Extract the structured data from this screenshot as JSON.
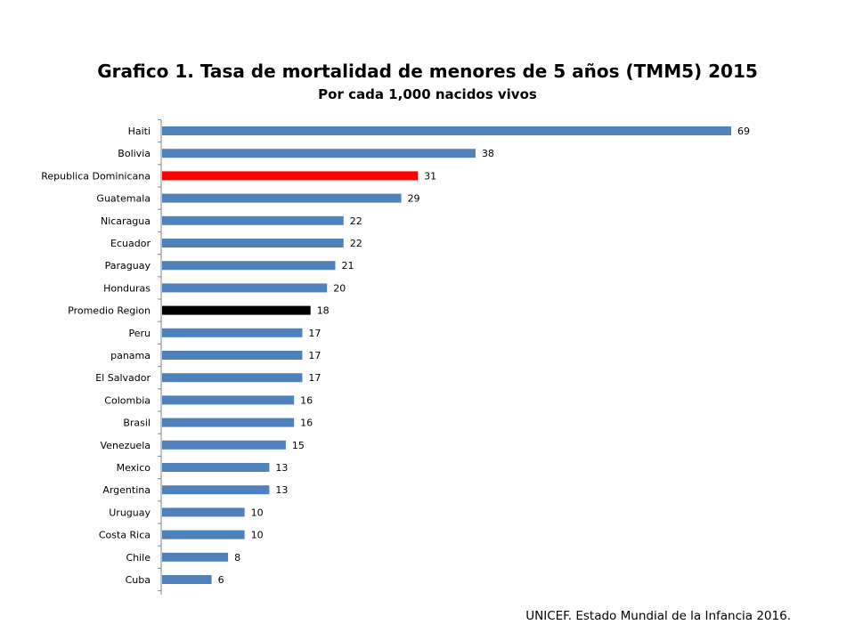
{
  "title": "Grafico 1. Tasa de mortalidad de menores de 5 años (TMM5) 2015",
  "subtitle": "Por cada 1,000 nacidos vivos",
  "source": "UNICEF. Estado Mundial de la Infancia 2016.",
  "colors": {
    "default": "#4f81bd",
    "highlight": "#ff0000",
    "region": "#000000"
  },
  "chart_data": {
    "type": "bar",
    "orientation": "horizontal",
    "title": "Grafico 1. Tasa de mortalidad de menores de 5 años (TMM5) 2015",
    "subtitle": "Por cada 1,000 nacidos vivos",
    "xlabel": "",
    "ylabel": "",
    "xlim": [
      0,
      70
    ],
    "grid": false,
    "categories": [
      "Haiti",
      "Bolivia",
      "Republica Dominicana",
      "Guatemala",
      "Nicaragua",
      "Ecuador",
      "Paraguay",
      "Honduras",
      "Promedio Region",
      "Peru",
      "panama",
      "El Salvador",
      "Colombia",
      "Brasil",
      "Venezuela",
      "Mexico",
      "Argentina",
      "Uruguay",
      "Costa Rica",
      "Chile",
      "Cuba"
    ],
    "values": [
      69,
      38,
      31,
      29,
      22,
      22,
      21,
      20,
      18,
      17,
      17,
      17,
      16,
      16,
      15,
      13,
      13,
      10,
      10,
      8,
      6
    ],
    "bar_colors": [
      "default",
      "default",
      "highlight",
      "default",
      "default",
      "default",
      "default",
      "default",
      "region",
      "default",
      "default",
      "default",
      "default",
      "default",
      "default",
      "default",
      "default",
      "default",
      "default",
      "default",
      "default"
    ]
  }
}
